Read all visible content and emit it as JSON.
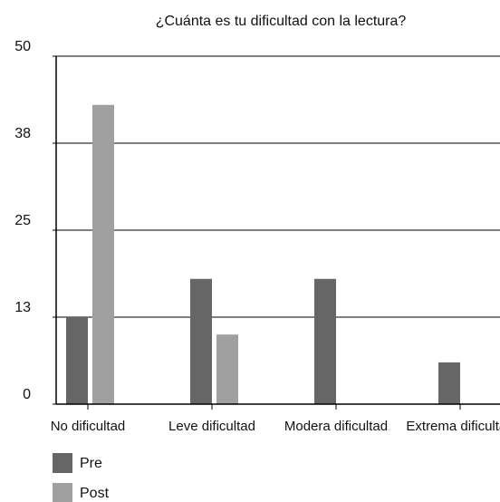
{
  "chart_data": {
    "type": "bar",
    "title": "¿Cuánta es tu dificultad con la lectura?",
    "categories": [
      "No dificultad",
      "Leve dificultad",
      "Modera dificultad",
      "Extrema dificultad"
    ],
    "series": [
      {
        "name": "Pre",
        "color": "#666666",
        "values": [
          12.5,
          18,
          18,
          6
        ]
      },
      {
        "name": "Post",
        "color": "#a0a0a0",
        "values": [
          43,
          10,
          0,
          0
        ]
      }
    ],
    "ylim": [
      0,
      50
    ],
    "yticks": [
      0,
      {
        "value": 12.5,
        "label": "13"
      },
      25,
      {
        "value": 37.5,
        "label": "38"
      },
      50
    ],
    "grid": true,
    "legend": "bottom-left"
  }
}
